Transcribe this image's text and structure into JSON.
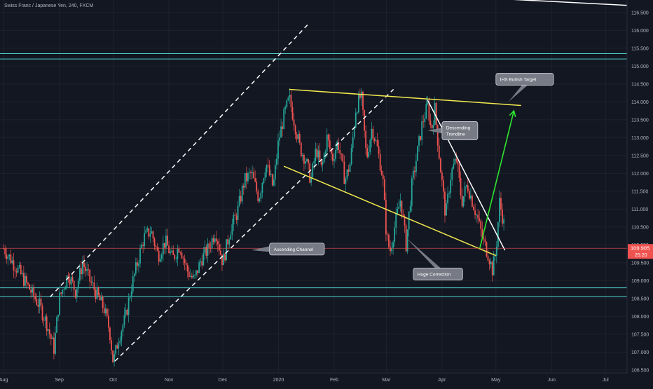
{
  "title": "Swiss Franc / Japanese Yen, 240, FXCM",
  "colors": {
    "background": "#131722",
    "grid": "#1e222d",
    "axis_text": "#b2b5be",
    "candle_up": "#26a69a",
    "candle_down": "#ef5350",
    "channel": "#ffffff",
    "pattern": "#f2e94e",
    "support": "#4dd0c8",
    "arrow": "#2ee62e",
    "price_line": "#ef5350",
    "price_tag": "#ef5350",
    "callout_bg": "#787b86",
    "callout_border": "#d1d4dc",
    "callout_text": "#ffffff"
  },
  "chart_data": {
    "type": "candlestick",
    "symbol": "Swiss Franc / Japanese Yen",
    "interval": "240",
    "source": "FXCM",
    "ylim": [
      106.42,
      116.85
    ],
    "y_ticks": [
      "106.500",
      "107.000",
      "107.500",
      "108.000",
      "108.500",
      "109.000",
      "109.500",
      "110.000",
      "110.500",
      "111.000",
      "111.500",
      "112.000",
      "112.500",
      "113.000",
      "113.500",
      "114.000",
      "114.500",
      "115.000",
      "115.500",
      "116.000",
      "116.500"
    ],
    "x_ticks": [
      {
        "label": "Aug",
        "t": 0
      },
      {
        "label": "Sep",
        "t": 31
      },
      {
        "label": "Oct",
        "t": 61
      },
      {
        "label": "Nov",
        "t": 92
      },
      {
        "label": "Dec",
        "t": 122
      },
      {
        "label": "2020",
        "t": 153
      },
      {
        "label": "Feb",
        "t": 184
      },
      {
        "label": "Mar",
        "t": 213
      },
      {
        "label": "Apr",
        "t": 244
      },
      {
        "label": "May",
        "t": 274
      },
      {
        "label": "Jun",
        "t": 305
      },
      {
        "label": "Jul",
        "t": 335
      }
    ],
    "xlim": [
      -2,
      347
    ],
    "price_path": [
      [
        0,
        109.9
      ],
      [
        8,
        109.3
      ],
      [
        14,
        108.8
      ],
      [
        20,
        108.3
      ],
      [
        24,
        107.8
      ],
      [
        28,
        107.1
      ],
      [
        31,
        108.5
      ],
      [
        36,
        109.2
      ],
      [
        40,
        108.7
      ],
      [
        44,
        109.5
      ],
      [
        48,
        109.0
      ],
      [
        52,
        108.6
      ],
      [
        56,
        108.2
      ],
      [
        59,
        107.6
      ],
      [
        61,
        106.7
      ],
      [
        64,
        107.4
      ],
      [
        68,
        108.0
      ],
      [
        71,
        108.8
      ],
      [
        74,
        109.4
      ],
      [
        78,
        110.2
      ],
      [
        82,
        110.4
      ],
      [
        86,
        109.7
      ],
      [
        90,
        110.1
      ],
      [
        94,
        109.6
      ],
      [
        98,
        110.0
      ],
      [
        102,
        109.3
      ],
      [
        106,
        109.0
      ],
      [
        110,
        109.6
      ],
      [
        114,
        109.9
      ],
      [
        118,
        110.4
      ],
      [
        122,
        109.5
      ],
      [
        126,
        110.4
      ],
      [
        130,
        110.9
      ],
      [
        134,
        111.8
      ],
      [
        138,
        112.0
      ],
      [
        142,
        111.3
      ],
      [
        146,
        112.3
      ],
      [
        150,
        111.6
      ],
      [
        153,
        112.9
      ],
      [
        156,
        113.6
      ],
      [
        159,
        114.1
      ],
      [
        162,
        113.4
      ],
      [
        165,
        112.7
      ],
      [
        168,
        112.4
      ],
      [
        171,
        111.8
      ],
      [
        174,
        112.7
      ],
      [
        177,
        112.1
      ],
      [
        180,
        113.0
      ],
      [
        183,
        112.4
      ],
      [
        186,
        112.9
      ],
      [
        190,
        111.8
      ],
      [
        193,
        112.3
      ],
      [
        196,
        113.8
      ],
      [
        199,
        114.2
      ],
      [
        202,
        112.4
      ],
      [
        205,
        113.3
      ],
      [
        208,
        112.7
      ],
      [
        211,
        111.9
      ],
      [
        213,
        110.3
      ],
      [
        215,
        109.8
      ],
      [
        218,
        110.6
      ],
      [
        221,
        111.3
      ],
      [
        224,
        110.0
      ],
      [
        227,
        111.6
      ],
      [
        230,
        112.5
      ],
      [
        233,
        113.4
      ],
      [
        236,
        113.9
      ],
      [
        238,
        113.2
      ],
      [
        240,
        113.8
      ],
      [
        243,
        112.2
      ],
      [
        246,
        110.8
      ],
      [
        249,
        112.0
      ],
      [
        252,
        112.4
      ],
      [
        255,
        111.2
      ],
      [
        258,
        111.7
      ],
      [
        261,
        111.2
      ],
      [
        264,
        110.7
      ],
      [
        267,
        110.1
      ],
      [
        270,
        109.7
      ],
      [
        272,
        109.3
      ],
      [
        274,
        109.8
      ],
      [
        276,
        111.2
      ],
      [
        278,
        110.7
      ],
      [
        279,
        110.45
      ]
    ],
    "last_price": "109.905",
    "countdown": "25:20",
    "horizontal_lines": [
      {
        "name": "resistance-zone-top",
        "price": 115.35,
        "color_key": "support"
      },
      {
        "name": "resistance-zone-bottom",
        "price": 115.2,
        "color_key": "support"
      },
      {
        "name": "support-zone-top",
        "price": 108.8,
        "color_key": "support"
      },
      {
        "name": "support-zone-bottom",
        "price": 108.55,
        "color_key": "support"
      }
    ],
    "trendlines": [
      {
        "name": "channel-upper-line",
        "style": "dashed",
        "color_key": "channel",
        "points": [
          [
            26,
            108.55
          ],
          [
            170,
            116.2
          ]
        ]
      },
      {
        "name": "channel-lower-line",
        "style": "dashed",
        "color_key": "channel",
        "points": [
          [
            62,
            106.75
          ],
          [
            217,
            114.35
          ]
        ]
      },
      {
        "name": "wedge-upper-line",
        "style": "solid",
        "color_key": "pattern",
        "points": [
          [
            159,
            114.35
          ],
          [
            288,
            113.9
          ]
        ]
      },
      {
        "name": "wedge-lower-line",
        "style": "solid",
        "color_key": "pattern",
        "points": [
          [
            156,
            112.2
          ],
          [
            274,
            109.7
          ]
        ]
      },
      {
        "name": "descending-trendline",
        "style": "solid",
        "color_key": "channel",
        "points": [
          [
            236,
            114.05
          ],
          [
            279,
            109.85
          ]
        ]
      },
      {
        "name": "top-right-line",
        "style": "solid",
        "color_key": "channel",
        "points": [
          [
            270,
            116.9
          ],
          [
            347,
            116.7
          ]
        ]
      }
    ],
    "arrow": {
      "from": [
        265,
        109.9
      ],
      "to": [
        284,
        113.75
      ]
    },
    "annotations": [
      {
        "name": "callout-ascending-channel",
        "text": "Ascending Channel",
        "lines": [
          "Ascending Channel"
        ],
        "box": [
          148,
          110.05
        ],
        "anchor": [
          138,
          109.85
        ],
        "pointer": "left"
      },
      {
        "name": "callout-huge-correction",
        "text": "Huge Correction",
        "lines": [
          "Huge Correction"
        ],
        "box": [
          228,
          109.35
        ],
        "anchor": [
          224,
          110.2
        ],
        "pointer": "up"
      },
      {
        "name": "callout-descending-trendline",
        "text": "Descending Trendline",
        "lines": [
          "Descending",
          "Trendline"
        ],
        "box": [
          244,
          113.45
        ],
        "anchor": [
          236,
          113.2
        ],
        "pointer": "left"
      },
      {
        "name": "callout-ihs-target",
        "text": "IHS Bullish Target",
        "lines": [
          "IHS Bullish Target"
        ],
        "box": [
          274,
          114.8
        ],
        "anchor": [
          281,
          114.0
        ],
        "pointer": "down"
      }
    ]
  }
}
